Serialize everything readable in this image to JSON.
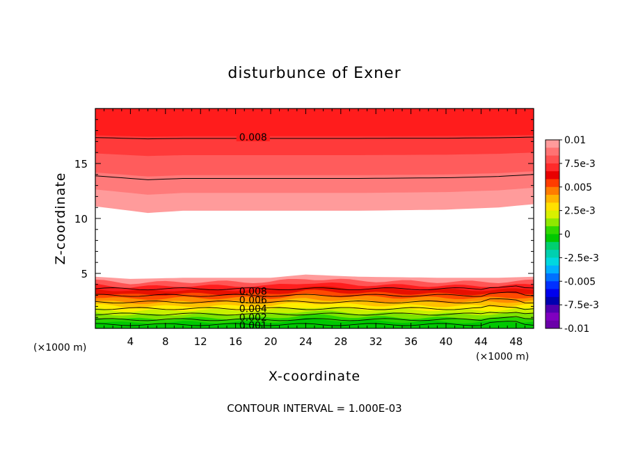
{
  "chart_data": {
    "type": "contour",
    "title": "disturbunce of Exner",
    "xlabel": "X-coordinate",
    "ylabel": "Z-coordinate",
    "x_unit_left": "(×1000 m)",
    "x_unit_right": "(×1000 m)",
    "xlim": [
      0,
      50
    ],
    "ylim": [
      0,
      20
    ],
    "xticks": [
      4,
      8,
      12,
      16,
      20,
      24,
      28,
      32,
      36,
      40,
      44,
      48
    ],
    "yticks": [
      5,
      10,
      15
    ],
    "footer": "CONTOUR INTERVAL = 1.000E-03",
    "contour_labels": [
      {
        "text": "0.008",
        "x": 18,
        "y": 17.4
      },
      {
        "text": "0.008",
        "x": 18,
        "y": 3.4
      },
      {
        "text": "0.006",
        "x": 18,
        "y": 2.6
      },
      {
        "text": "0.004",
        "x": 18,
        "y": 1.8
      },
      {
        "text": "0.002",
        "x": 18,
        "y": 1.0
      },
      {
        "text": "0.001",
        "x": 18,
        "y": 0.3
      }
    ],
    "upper_band_bottom": [
      [
        0,
        11.1
      ],
      [
        4,
        10.7
      ],
      [
        6,
        10.5
      ],
      [
        10,
        10.7
      ],
      [
        20,
        10.7
      ],
      [
        30,
        10.7
      ],
      [
        40,
        10.8
      ],
      [
        46,
        11.0
      ],
      [
        50,
        11.3
      ]
    ],
    "lower_band_top": [
      [
        0,
        4.7
      ],
      [
        4,
        4.5
      ],
      [
        10,
        4.6
      ],
      [
        20,
        4.6
      ],
      [
        24,
        4.9
      ],
      [
        30,
        4.7
      ],
      [
        40,
        4.6
      ],
      [
        46,
        4.6
      ],
      [
        50,
        4.7
      ]
    ],
    "colorbar": {
      "labels": [
        "0.01",
        "7.5e-3",
        "0.005",
        "2.5e-3",
        "0",
        "-2.5e-3",
        "-0.005",
        "-7.5e-3",
        "-0.01"
      ],
      "colors_top_to_bottom": [
        "#ff9b9b",
        "#ff7373",
        "#ff5050",
        "#ff2a2a",
        "#e80000",
        "#ff3c00",
        "#ff7c00",
        "#ffb400",
        "#ffe000",
        "#d8f000",
        "#90e800",
        "#30d800",
        "#00c800",
        "#00d070",
        "#00d0b0",
        "#00d8e0",
        "#00b0ff",
        "#0070ff",
        "#0030ff",
        "#0000ee",
        "#0000b0",
        "#5000b0",
        "#8000c0",
        "#6a00a8"
      ]
    }
  }
}
